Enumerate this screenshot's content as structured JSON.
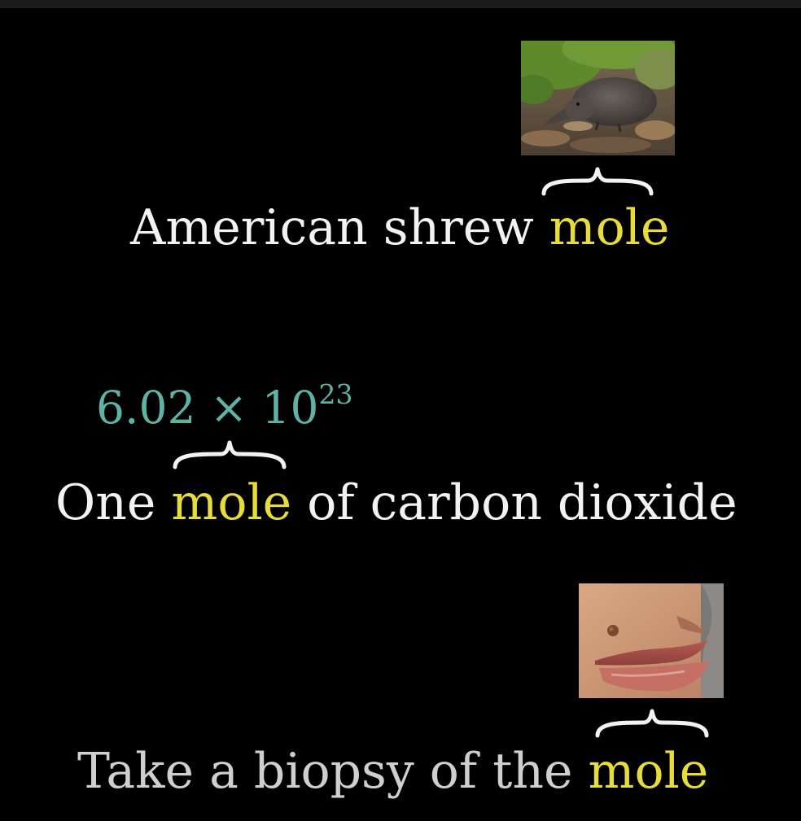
{
  "colors": {
    "background": "#000000",
    "text_white": "#f2f2f2",
    "text_gray": "#cfcfcf",
    "highlight_yellow": "#e6dc3a",
    "number_teal": "#5fb3a6"
  },
  "example_shrew": {
    "image": "american-shrew-mole-photo",
    "prefix": "American shrew ",
    "highlight": "mole"
  },
  "example_chemistry": {
    "number_base": "6.02 × 10",
    "number_exponent": "23",
    "prefix": "One ",
    "highlight": "mole",
    "suffix": " of carbon dioxide"
  },
  "example_skin": {
    "image": "skin-mole-near-lips-photo",
    "prefix": "Take a biopsy of the ",
    "highlight": "mole"
  }
}
